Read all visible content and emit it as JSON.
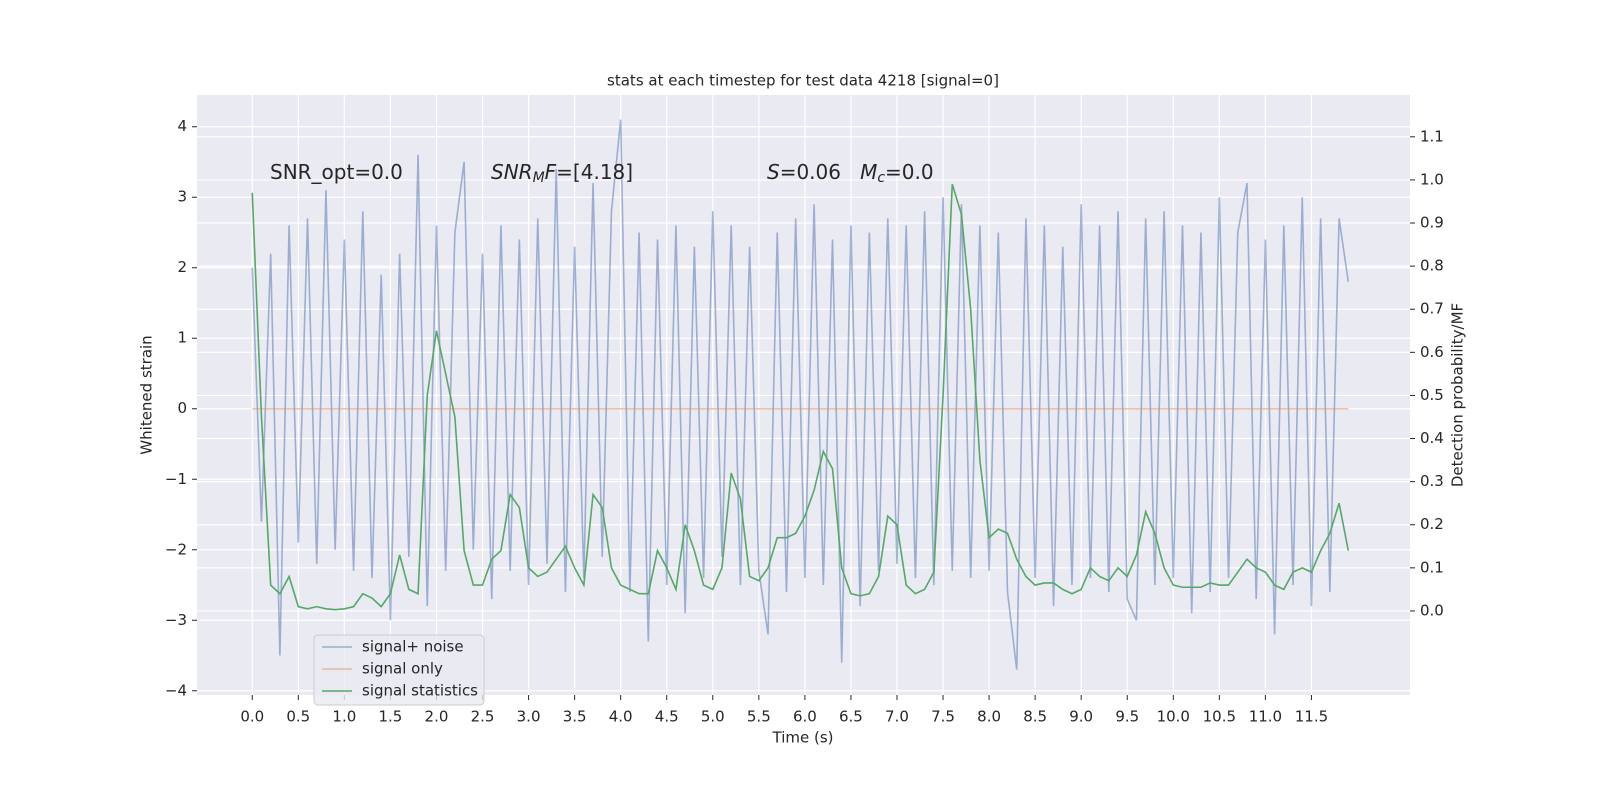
{
  "chart_data": {
    "type": "line",
    "title": "stats at each timestep for test data 4218 [signal=0]",
    "xlabel": "Time (s)",
    "ylabel": "Whitened strain",
    "y2label": "Detection probability/MF",
    "grid": true,
    "legend": "lower left",
    "annotations": [
      {
        "parts": [
          {
            "text": "SNR_opt=0.0"
          }
        ]
      },
      {
        "parts": [
          {
            "text": "SNR",
            "style": "italic"
          },
          {
            "text": "M",
            "style": "italic-sub"
          },
          {
            "text": "F",
            "style": "italic"
          },
          {
            "text": "=[4.18]"
          }
        ]
      },
      {
        "parts": [
          {
            "text": "S",
            "style": "italic"
          },
          {
            "text": "=0.06   "
          },
          {
            "text": "M",
            "style": "italic"
          },
          {
            "text": "c",
            "style": "italic-sub"
          },
          {
            "text": "=0.0"
          }
        ]
      }
    ],
    "xlim": [
      -0.6,
      12.57
    ],
    "xticks": [
      {
        "value": 0,
        "label": "0.0"
      },
      0.5,
      {
        "value": 1,
        "label": "1.0"
      },
      1.5,
      {
        "value": 2,
        "label": "2.0"
      },
      2.5,
      {
        "value": 3,
        "label": "3.0"
      },
      3.5,
      {
        "value": 4,
        "label": "4.0"
      },
      4.5,
      {
        "value": 5,
        "label": "5.0"
      },
      5.5,
      {
        "value": 6,
        "label": "6.0"
      },
      6.5,
      {
        "value": 7,
        "label": "7.0"
      },
      7.5,
      {
        "value": 8,
        "label": "8.0"
      },
      8.5,
      {
        "value": 9,
        "label": "9.0"
      },
      9.5,
      {
        "value": 10,
        "label": "10.0"
      },
      10.5,
      {
        "value": 11,
        "label": "11.0"
      },
      11.5
    ],
    "ylim": [
      -4.06,
      4.45
    ],
    "yticks": [
      {
        "value": -4,
        "label": "−4"
      },
      {
        "value": -3,
        "label": "−3"
      },
      {
        "value": -2,
        "label": "−2"
      },
      {
        "value": -1,
        "label": "−1"
      },
      0,
      1,
      2,
      3,
      4
    ],
    "y2lim": [
      -0.195,
      1.197
    ],
    "y2ticks": [
      {
        "value": 0,
        "label": "0.0"
      },
      0.1,
      0.2,
      0.3,
      0.4,
      0.5,
      0.6,
      0.7,
      0.8,
      0.9,
      {
        "value": 1,
        "label": "1.0"
      },
      1.1
    ],
    "x": [
      0.0,
      0.1,
      0.2,
      0.3,
      0.4,
      0.5,
      0.6,
      0.7,
      0.8,
      0.9,
      1.0,
      1.1,
      1.2,
      1.3,
      1.4,
      1.5,
      1.6,
      1.7,
      1.8,
      1.9,
      2.0,
      2.1,
      2.2,
      2.3,
      2.4,
      2.5,
      2.6,
      2.7,
      2.8,
      2.9,
      3.0,
      3.1,
      3.2,
      3.3,
      3.4,
      3.5,
      3.6,
      3.7,
      3.8,
      3.9,
      4.0,
      4.1,
      4.2,
      4.3,
      4.4,
      4.5,
      4.6,
      4.7,
      4.8,
      4.9,
      5.0,
      5.1,
      5.2,
      5.3,
      5.4,
      5.5,
      5.6,
      5.7,
      5.8,
      5.9,
      6.0,
      6.1,
      6.2,
      6.3,
      6.4,
      6.5,
      6.6,
      6.7,
      6.8,
      6.9,
      7.0,
      7.1,
      7.2,
      7.3,
      7.4,
      7.5,
      7.6,
      7.7,
      7.8,
      7.9,
      8.0,
      8.1,
      8.2,
      8.3,
      8.4,
      8.5,
      8.6,
      8.7,
      8.8,
      8.9,
      9.0,
      9.1,
      9.2,
      9.3,
      9.4,
      9.5,
      9.6,
      9.7,
      9.8,
      9.9,
      10.0,
      10.1,
      10.2,
      10.3,
      10.4,
      10.5,
      10.6,
      10.7,
      10.8,
      10.9,
      11.0,
      11.1,
      11.2,
      11.3,
      11.4,
      11.5,
      11.6,
      11.7,
      11.8,
      11.9
    ],
    "series": [
      {
        "name": "signal+ noise",
        "color": "#4c72b0",
        "alpha": 0.5,
        "values": [
          2.0,
          -1.6,
          2.2,
          -3.5,
          2.6,
          -1.9,
          2.7,
          -2.2,
          3.1,
          -2.0,
          2.4,
          -2.3,
          2.8,
          -2.4,
          1.9,
          -3.0,
          2.2,
          -2.1,
          3.6,
          -2.8,
          2.6,
          -2.3,
          2.5,
          3.5,
          -2.0,
          2.2,
          -2.7,
          2.6,
          -2.3,
          2.4,
          -2.5,
          2.7,
          -2.2,
          3.4,
          -2.6,
          2.3,
          -2.4,
          3.2,
          -2.1,
          2.8,
          4.1,
          -2.6,
          2.5,
          -3.3,
          2.4,
          -2.5,
          2.6,
          -2.9,
          2.3,
          -2.4,
          2.8,
          -2.1,
          2.6,
          -2.5,
          2.3,
          -2.3,
          -3.2,
          2.5,
          -2.6,
          2.7,
          -2.4,
          2.9,
          -2.5,
          2.4,
          -3.6,
          2.6,
          -2.8,
          2.5,
          -2.3,
          2.7,
          -2.2,
          2.6,
          -2.4,
          2.8,
          -2.5,
          3.0,
          -2.3,
          2.9,
          -2.4,
          2.6,
          -2.3,
          2.5,
          -2.6,
          -3.7,
          2.7,
          -2.4,
          2.6,
          -2.8,
          2.3,
          -2.5,
          2.9,
          -2.4,
          2.6,
          -2.6,
          2.8,
          -2.7,
          -3.0,
          2.7,
          -2.5,
          2.8,
          -2.4,
          2.6,
          -2.9,
          2.5,
          -2.6,
          3.0,
          -2.4,
          2.5,
          3.2,
          -2.7,
          2.4,
          -3.2,
          2.6,
          -2.5,
          3.0,
          -2.8,
          2.7,
          -2.6,
          2.7,
          1.8
        ]
      },
      {
        "name": "signal only",
        "color": "#dd8452",
        "alpha": 0.5,
        "values": [
          0,
          0,
          0,
          0,
          0,
          0,
          0,
          0,
          0,
          0,
          0,
          0,
          0,
          0,
          0,
          0,
          0,
          0,
          0,
          0,
          0,
          0,
          0,
          0,
          0,
          0,
          0,
          0,
          0,
          0,
          0,
          0,
          0,
          0,
          0,
          0,
          0,
          0,
          0,
          0,
          0,
          0,
          0,
          0,
          0,
          0,
          0,
          0,
          0,
          0,
          0,
          0,
          0,
          0,
          0,
          0,
          0,
          0,
          0,
          0,
          0,
          0,
          0,
          0,
          0,
          0,
          0,
          0,
          0,
          0,
          0,
          0,
          0,
          0,
          0,
          0,
          0,
          0,
          0,
          0,
          0,
          0,
          0,
          0,
          0,
          0,
          0,
          0,
          0,
          0,
          0,
          0,
          0,
          0,
          0,
          0,
          0,
          0,
          0,
          0,
          0,
          0,
          0,
          0,
          0,
          0,
          0,
          0,
          0,
          0,
          0,
          0,
          0,
          0,
          0,
          0,
          0,
          0,
          0,
          0
        ]
      },
      {
        "name": "signal statistics",
        "color": "#55a868",
        "alpha": 1,
        "axis": "y2",
        "values": [
          0.97,
          0.45,
          0.06,
          0.04,
          0.08,
          0.01,
          0.005,
          0.01,
          0.005,
          0.003,
          0.005,
          0.01,
          0.04,
          0.03,
          0.01,
          0.04,
          0.13,
          0.05,
          0.04,
          0.5,
          0.65,
          0.55,
          0.45,
          0.14,
          0.06,
          0.06,
          0.12,
          0.14,
          0.27,
          0.24,
          0.1,
          0.08,
          0.09,
          0.12,
          0.15,
          0.1,
          0.06,
          0.27,
          0.24,
          0.1,
          0.06,
          0.05,
          0.04,
          0.04,
          0.14,
          0.1,
          0.05,
          0.2,
          0.14,
          0.06,
          0.05,
          0.1,
          0.32,
          0.26,
          0.08,
          0.07,
          0.1,
          0.17,
          0.17,
          0.18,
          0.22,
          0.28,
          0.37,
          0.33,
          0.1,
          0.04,
          0.035,
          0.04,
          0.08,
          0.22,
          0.2,
          0.06,
          0.04,
          0.05,
          0.09,
          0.5,
          0.99,
          0.92,
          0.7,
          0.35,
          0.17,
          0.19,
          0.18,
          0.12,
          0.08,
          0.06,
          0.065,
          0.065,
          0.05,
          0.04,
          0.05,
          0.1,
          0.08,
          0.07,
          0.1,
          0.08,
          0.13,
          0.23,
          0.18,
          0.1,
          0.06,
          0.055,
          0.055,
          0.055,
          0.065,
          0.06,
          0.06,
          0.09,
          0.12,
          0.1,
          0.09,
          0.06,
          0.05,
          0.09,
          0.1,
          0.09,
          0.14,
          0.18,
          0.25,
          0.14
        ]
      }
    ]
  }
}
